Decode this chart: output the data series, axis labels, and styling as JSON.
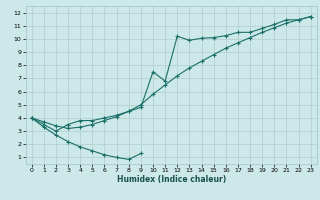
{
  "xlabel": "Humidex (Indice chaleur)",
  "bg_color": "#cde8e8",
  "grid_color": "#b8d4d4",
  "line_color": "#1a7068",
  "xlim": [
    -0.5,
    23.5
  ],
  "ylim": [
    0.5,
    12.5
  ],
  "xticks": [
    0,
    1,
    2,
    3,
    4,
    5,
    6,
    7,
    8,
    9,
    10,
    11,
    12,
    13,
    14,
    15,
    16,
    17,
    18,
    19,
    20,
    21,
    22,
    23
  ],
  "yticks": [
    1,
    2,
    3,
    4,
    5,
    6,
    7,
    8,
    9,
    10,
    11,
    12
  ],
  "line1_x": [
    0,
    1,
    2,
    3,
    4,
    5,
    6,
    7,
    8,
    9
  ],
  "line1_y": [
    4.0,
    3.3,
    2.7,
    2.2,
    1.8,
    1.5,
    1.2,
    1.0,
    0.85,
    1.3
  ],
  "line2_x": [
    0,
    1,
    2,
    3,
    4,
    5,
    6,
    7,
    8,
    9,
    10,
    11,
    12,
    13,
    14,
    15,
    16,
    17,
    18,
    19,
    20,
    21,
    22,
    23
  ],
  "line2_y": [
    4.0,
    3.7,
    3.4,
    3.2,
    3.3,
    3.5,
    3.8,
    4.1,
    4.5,
    5.0,
    5.8,
    6.5,
    7.2,
    7.8,
    8.3,
    8.8,
    9.3,
    9.7,
    10.1,
    10.5,
    10.85,
    11.2,
    11.45,
    11.7
  ],
  "line3_x": [
    0,
    1,
    2,
    3,
    4,
    5,
    6,
    7,
    8,
    9,
    10,
    11,
    12,
    13,
    14,
    15,
    16,
    17,
    18,
    19,
    20,
    21,
    22,
    23
  ],
  "line3_y": [
    4.0,
    3.5,
    3.0,
    3.5,
    3.8,
    3.8,
    4.0,
    4.2,
    4.5,
    4.8,
    7.5,
    6.8,
    10.2,
    9.9,
    10.05,
    10.1,
    10.25,
    10.5,
    10.5,
    10.8,
    11.1,
    11.45,
    11.45,
    11.7
  ]
}
